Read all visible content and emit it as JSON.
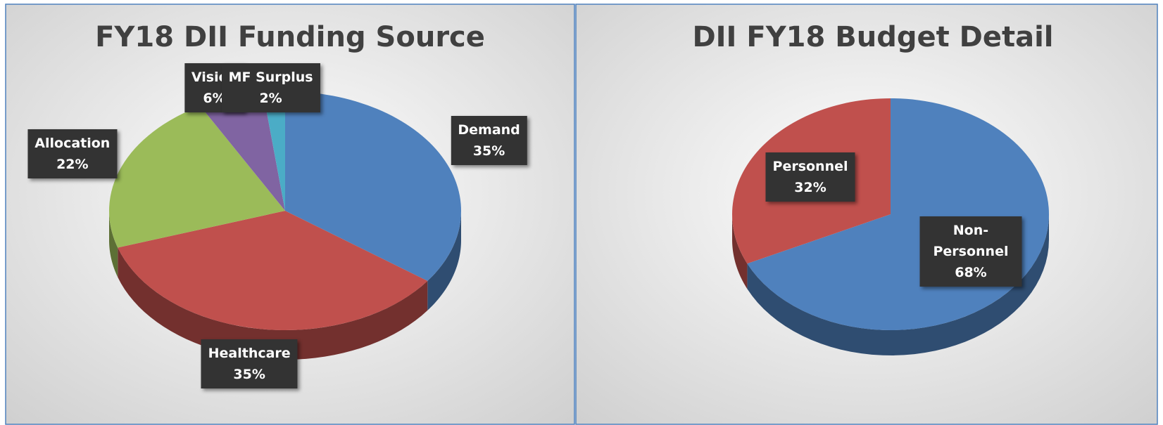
{
  "chart_data": [
    {
      "type": "pie",
      "title": "FY18 DII Funding Source",
      "categories": [
        "Demand",
        "Healthcare",
        "Allocation",
        "Vision",
        "MF Surplus"
      ],
      "values": [
        35,
        35,
        22,
        6,
        2
      ],
      "value_labels": [
        "35%",
        "35%",
        "22%",
        "6%",
        "2%"
      ],
      "colors": [
        "#4f81bd",
        "#c0504d",
        "#9bbb59",
        "#8064a2",
        "#4bacc6"
      ]
    },
    {
      "type": "pie",
      "title": "DII FY18 Budget Detail",
      "categories": [
        "Non-Personnel",
        "Personnel"
      ],
      "values": [
        68,
        32
      ],
      "value_labels": [
        "68%",
        "32%"
      ],
      "colors": [
        "#4f81bd",
        "#c0504d"
      ]
    }
  ]
}
